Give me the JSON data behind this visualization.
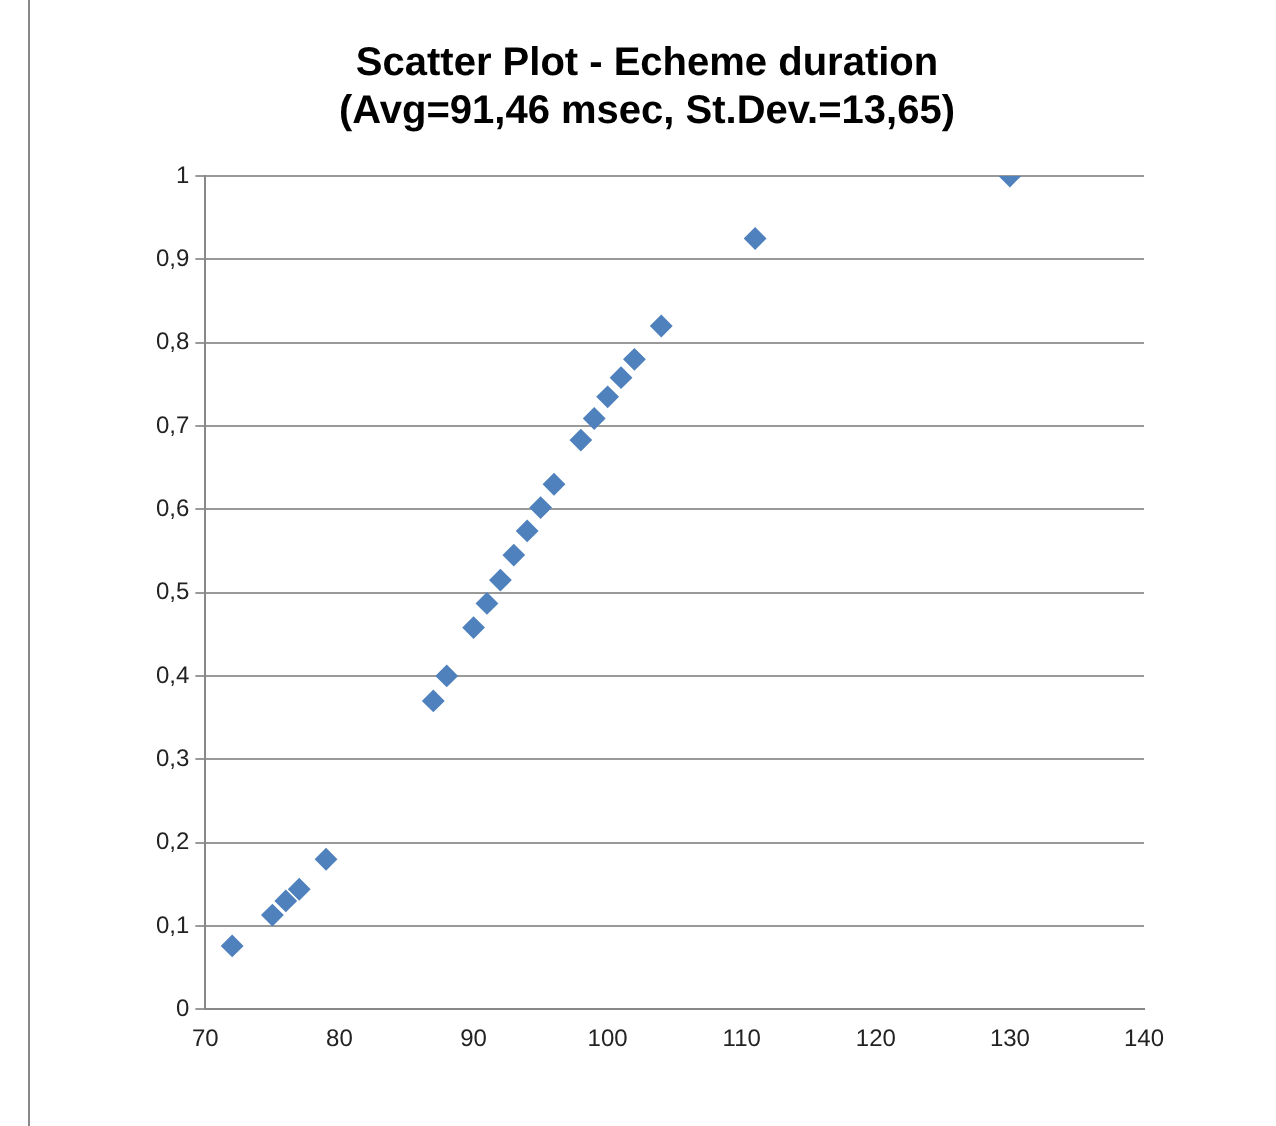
{
  "chart_data": {
    "type": "scatter",
    "title": [
      "Scatter Plot - Echeme duration",
      "(Avg=91,46 msec, St.Dev.=13,65)"
    ],
    "x": [
      72,
      75,
      76,
      77,
      79,
      87,
      88,
      90,
      91,
      92,
      93,
      94,
      95,
      96,
      98,
      99,
      100,
      101,
      102,
      104,
      111,
      130
    ],
    "series": [
      {
        "color": "#4f81bd",
        "values": [
          0.076,
          0.113,
          0.13,
          0.144,
          0.18,
          0.37,
          0.4,
          0.458,
          0.487,
          0.515,
          0.545,
          0.574,
          0.602,
          0.63,
          0.683,
          0.709,
          0.735,
          0.758,
          0.78,
          0.82,
          0.925,
          1.0
        ]
      }
    ],
    "xlim": [
      70,
      140
    ],
    "xticks": [
      70,
      80,
      90,
      100,
      110,
      120,
      130,
      140
    ],
    "ylim": [
      0,
      1
    ],
    "yticks": [
      {
        "value": 0,
        "label": "0"
      },
      {
        "value": 0.1,
        "label": "0,1"
      },
      {
        "value": 0.2,
        "label": "0,2"
      },
      {
        "value": 0.3,
        "label": "0,3"
      },
      {
        "value": 0.4,
        "label": "0,4"
      },
      {
        "value": 0.5,
        "label": "0,5"
      },
      {
        "value": 0.6,
        "label": "0,6"
      },
      {
        "value": 0.7,
        "label": "0,7"
      },
      {
        "value": 0.8,
        "label": "0,8"
      },
      {
        "value": 0.9,
        "label": "0,9"
      },
      {
        "value": 1,
        "label": "1"
      }
    ],
    "grid": "y",
    "legend": false,
    "marker": "diamond"
  }
}
